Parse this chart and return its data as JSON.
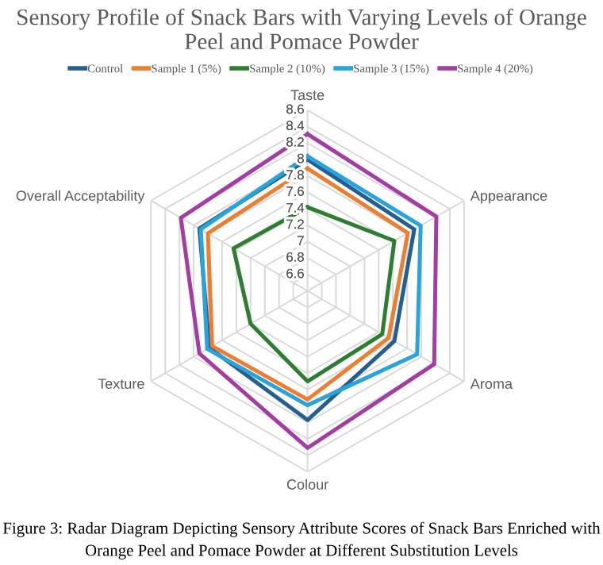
{
  "chart_data": {
    "type": "radar",
    "title": "Sensory Profile of Snack Bars with Varying Levels of Orange Peel and Pomace Powder",
    "categories": [
      "Taste",
      "Appearance",
      "Aroma",
      "Colour",
      "Texture",
      "Overall Acceptability"
    ],
    "series": [
      {
        "name": "Control",
        "color": "#255e91",
        "values": [
          8.0,
          7.9,
          7.62,
          7.97,
          7.78,
          7.92
        ]
      },
      {
        "name": "Sample 1 (5%)",
        "color": "#ed7d31",
        "values": [
          7.89,
          7.81,
          7.54,
          7.72,
          7.74,
          7.8
        ]
      },
      {
        "name": "Sample 2 (10%)",
        "color": "#2e7d32",
        "values": [
          7.42,
          7.62,
          7.45,
          7.5,
          7.2,
          7.44
        ]
      },
      {
        "name": "Sample 3 (15%)",
        "color": "#29a3dc",
        "values": [
          8.04,
          7.99,
          7.94,
          7.79,
          7.81,
          7.9
        ]
      },
      {
        "name": "Sample 4 (20%)",
        "color": "#a33ca3",
        "values": [
          8.31,
          8.21,
          8.18,
          8.31,
          7.92,
          8.18
        ]
      }
    ],
    "ylim": [
      6.4,
      8.6
    ],
    "yticks": [
      6.6,
      6.8,
      7,
      7.2,
      7.4,
      7.6,
      7.8,
      8,
      8.2,
      8.4,
      8.6
    ],
    "grid": true,
    "legend": "top",
    "marker": "none",
    "line_style": "solid",
    "annotations": [
      "Figure 3: Radar Diagram Depicting Sensory Attribute Scores of Snack Bars Enriched with Orange Peel and Pomace Powder at Different Substitution Levels"
    ]
  }
}
